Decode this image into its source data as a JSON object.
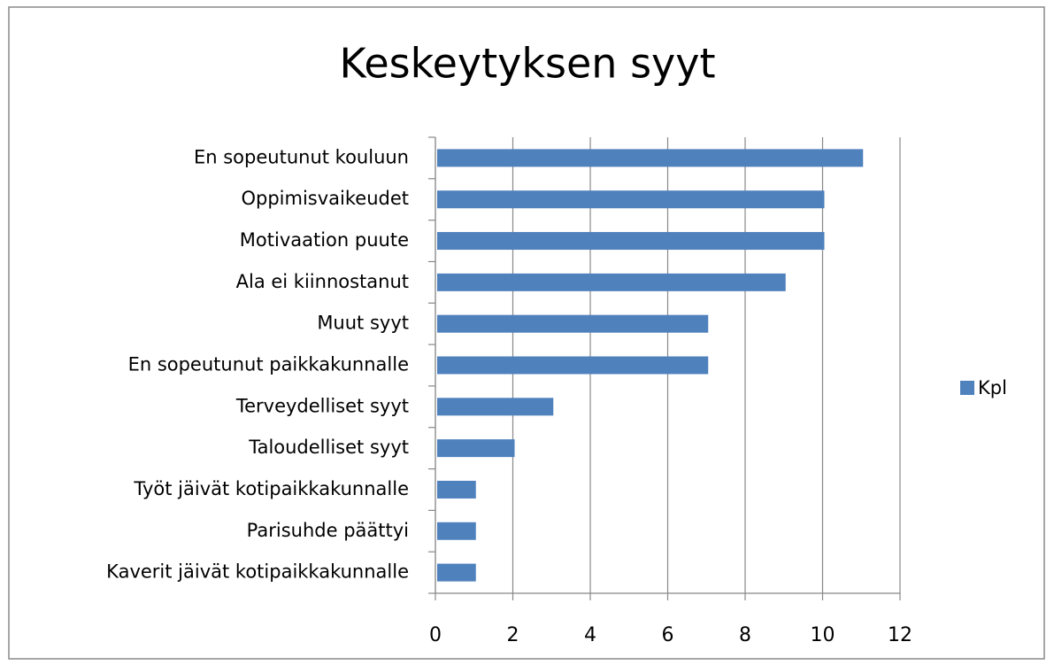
{
  "chart_data": {
    "type": "bar",
    "orientation": "horizontal",
    "title": "Keskeytyksen syyt",
    "categories": [
      "En sopeutunut kouluun",
      "Oppimisvaikeudet",
      "Motivaation puute",
      "Ala ei kiinnostanut",
      "Muut syyt",
      "En sopeutunut paikkakunnalle",
      "Terveydelliset syyt",
      "Taloudelliset syyt",
      "Työt jäivät kotipaikkakunnalle",
      "Parisuhde päättyi",
      "Kaverit jäivät kotipaikkakunnalle"
    ],
    "series": [
      {
        "name": "Kpl",
        "color": "#4f81bd",
        "values": [
          11,
          10,
          10,
          9,
          7,
          7,
          3,
          2,
          1,
          1,
          1
        ]
      }
    ],
    "xlim": [
      0,
      12
    ],
    "xticks": [
      0,
      2,
      4,
      6,
      8,
      10,
      12
    ],
    "grid": true,
    "legend": "right"
  }
}
